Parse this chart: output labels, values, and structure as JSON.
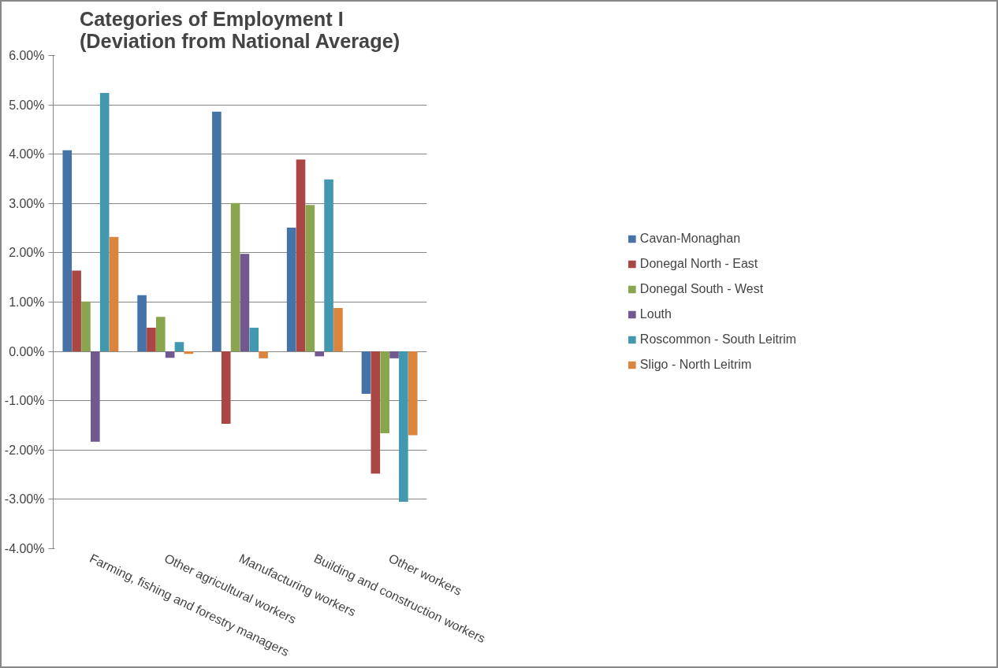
{
  "chart_data": {
    "type": "bar",
    "title": "Categories of Employment I\n(Deviation from National Average)",
    "categories": [
      "Farming, fishing and forestry managers",
      "Other agricultural workers",
      "Manufacturing workers",
      "Building and construction workers",
      "Other workers"
    ],
    "series": [
      {
        "name": "Cavan-Monaghan",
        "color": "#4572a7",
        "values": [
          4.08,
          1.14,
          4.86,
          2.51,
          -0.86
        ]
      },
      {
        "name": "Donegal North - East",
        "color": "#aa4643",
        "values": [
          1.64,
          0.48,
          -1.47,
          3.89,
          -2.48
        ]
      },
      {
        "name": "Donegal South - West",
        "color": "#89a54e",
        "values": [
          1.01,
          0.7,
          3.01,
          2.97,
          -1.66
        ]
      },
      {
        "name": "Louth",
        "color": "#71588f",
        "values": [
          -1.83,
          -0.13,
          1.98,
          -0.1,
          -0.14
        ]
      },
      {
        "name": "Roscommon - South Leitrim",
        "color": "#4198af",
        "values": [
          5.24,
          0.19,
          0.48,
          3.49,
          -3.05
        ]
      },
      {
        "name": "Sligo - North Leitrim",
        "color": "#db843d",
        "values": [
          2.32,
          -0.05,
          -0.14,
          0.88,
          -1.7
        ]
      }
    ],
    "ylim": [
      -4,
      6
    ],
    "yticks": [
      {
        "value": -4,
        "label": "-4.00%"
      },
      {
        "value": -3,
        "label": "-3.00%"
      },
      {
        "value": -2,
        "label": "-2.00%"
      },
      {
        "value": -1,
        "label": "-1.00%"
      },
      {
        "value": 0,
        "label": "0.00%"
      },
      {
        "value": 1,
        "label": "1.00%"
      },
      {
        "value": 2,
        "label": "2.00%"
      },
      {
        "value": 3,
        "label": "3.00%"
      },
      {
        "value": 4,
        "label": "4.00%"
      },
      {
        "value": 5,
        "label": "5.00%"
      },
      {
        "value": 6,
        "label": "6.00%"
      }
    ],
    "grid": "y",
    "legend": "right"
  }
}
